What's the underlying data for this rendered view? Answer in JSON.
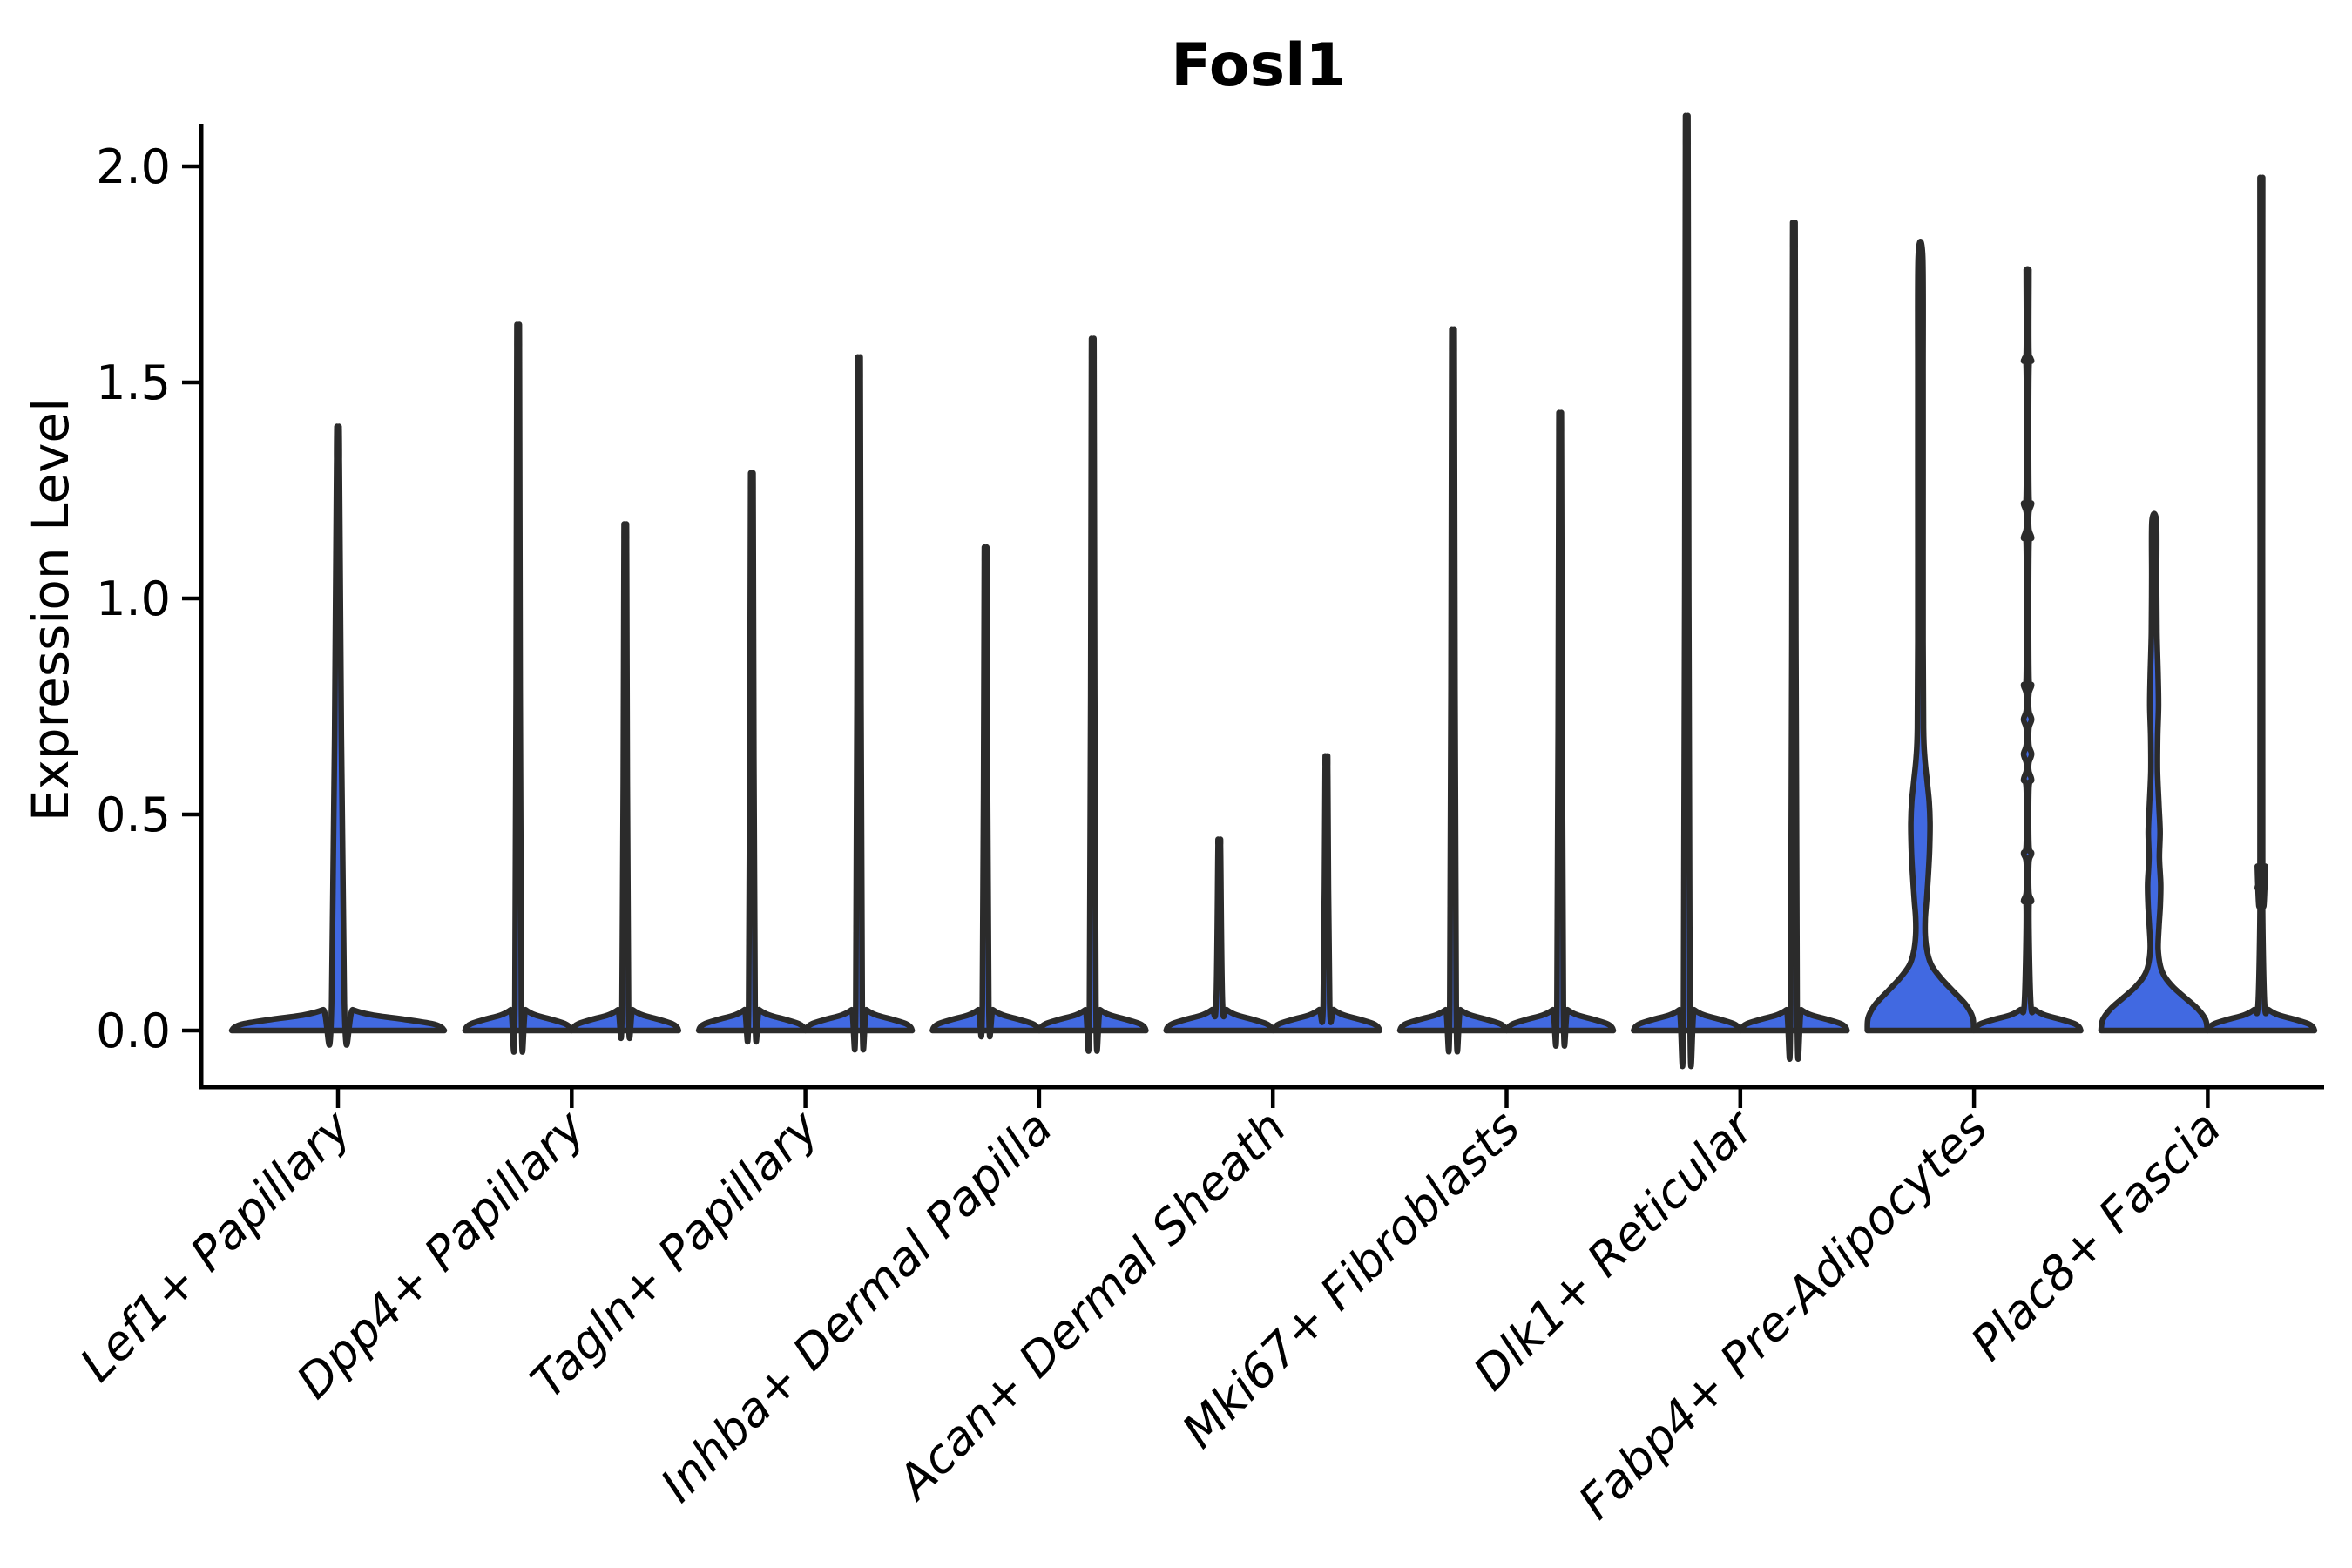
{
  "chart_data": {
    "type": "violin",
    "title": "Fosl1",
    "ylabel": "Expression Level",
    "xlabel": "",
    "grid": false,
    "legend": null,
    "ylim": [
      -0.13,
      2.1
    ],
    "yticks": [
      {
        "label": "0.0",
        "value": 0.0
      },
      {
        "label": "0.5",
        "value": 0.5
      },
      {
        "label": "1.0",
        "value": 1.0
      },
      {
        "label": "1.5",
        "value": 1.5
      },
      {
        "label": "2.0",
        "value": 2.0
      }
    ],
    "style": {
      "fill_color": "#4169E1",
      "outline_color": "#2b2b2b",
      "axis_color": "#000000",
      "background": "#ffffff"
    },
    "categories": [
      {
        "label": "Lef1+ Papillary",
        "violins": [
          {
            "position": "center",
            "max": 1.32,
            "shape": "plain"
          }
        ]
      },
      {
        "label": "Dpp4+ Papillary",
        "violins": [
          {
            "position": "left",
            "max": 1.54,
            "shape": "plain"
          },
          {
            "position": "right",
            "max": 1.11,
            "shape": "plain"
          }
        ]
      },
      {
        "label": "Tagln+ Papillary",
        "violins": [
          {
            "position": "left",
            "max": 1.22,
            "shape": "plain"
          },
          {
            "position": "right",
            "max": 1.47,
            "shape": "plain"
          }
        ]
      },
      {
        "label": "Inhba+ Dermal Papilla",
        "violins": [
          {
            "position": "left",
            "max": 1.06,
            "shape": "plain"
          },
          {
            "position": "right",
            "max": 1.51,
            "shape": "plain"
          }
        ]
      },
      {
        "label": "Acan+ Dermal Sheath",
        "violins": [
          {
            "position": "left",
            "max": 0.43,
            "shape": "plain"
          },
          {
            "position": "right",
            "max": 0.61,
            "shape": "plain"
          }
        ]
      },
      {
        "label": "Mki67+ Fibroblasts",
        "violins": [
          {
            "position": "left",
            "max": 1.53,
            "shape": "plain"
          },
          {
            "position": "right",
            "max": 1.35,
            "shape": "plain"
          }
        ]
      },
      {
        "label": "Dlk1+ Reticular",
        "violins": [
          {
            "position": "left",
            "max": 1.99,
            "shape": "plain"
          },
          {
            "position": "right",
            "max": 1.76,
            "shape": "plain"
          }
        ]
      },
      {
        "label": "Fabp4+ Pre-Adipocytes",
        "violins": [
          {
            "position": "left",
            "max": 1.79,
            "shape": "body",
            "profile": [
              [
                0,
                61
              ],
              [
                0.03,
                60
              ],
              [
                0.06,
                52
              ],
              [
                0.09,
                38
              ],
              [
                0.12,
                24
              ],
              [
                0.15,
                13
              ],
              [
                0.18,
                8
              ],
              [
                0.22,
                5.5
              ],
              [
                0.26,
                5.5
              ],
              [
                0.3,
                7
              ],
              [
                0.36,
                9
              ],
              [
                0.42,
                10.5
              ],
              [
                0.48,
                11
              ],
              [
                0.53,
                10
              ],
              [
                0.58,
                7.5
              ],
              [
                0.63,
                5
              ],
              [
                0.7,
                3.5
              ],
              [
                0.9,
                3
              ],
              [
                1.2,
                3
              ],
              [
                1.5,
                3
              ],
              [
                1.79,
                2.6
              ]
            ]
          },
          {
            "position": "right",
            "max": 1.76,
            "shape": "knotted",
            "knots": [
              0.3,
              0.41,
              0.58,
              0.64,
              0.72,
              0.8,
              1.14,
              1.22,
              1.55
            ]
          }
        ]
      },
      {
        "label": "Plac8+ Fascia",
        "violins": [
          {
            "position": "left",
            "max": 1.18,
            "shape": "body",
            "profile": [
              [
                0,
                61
              ],
              [
                0.025,
                59
              ],
              [
                0.05,
                50
              ],
              [
                0.075,
                36
              ],
              [
                0.1,
                22
              ],
              [
                0.125,
                12
              ],
              [
                0.15,
                7
              ],
              [
                0.19,
                4.5
              ],
              [
                0.24,
                5.5
              ],
              [
                0.29,
                7
              ],
              [
                0.34,
                7.5
              ],
              [
                0.4,
                6
              ],
              [
                0.46,
                6.8
              ],
              [
                0.52,
                5.5
              ],
              [
                0.6,
                3.8
              ],
              [
                0.68,
                4
              ],
              [
                0.75,
                5
              ],
              [
                0.82,
                4.5
              ],
              [
                0.92,
                3.2
              ],
              [
                1.05,
                2.8
              ],
              [
                1.18,
                2.5
              ]
            ]
          },
          {
            "position": "right",
            "max": 1.88,
            "shape": "knotted",
            "knots": [
              0.33,
              0.38
            ]
          }
        ]
      }
    ]
  }
}
